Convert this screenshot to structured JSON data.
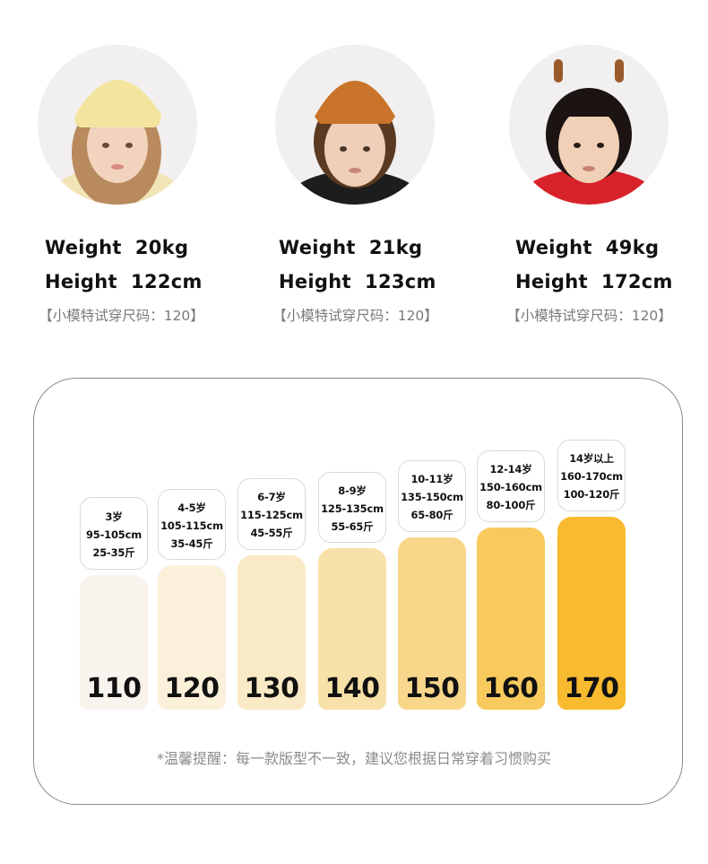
{
  "models": [
    {
      "weight": "Weight  20kg",
      "height": "Height  122cm",
      "trial_size": "【小模特试穿尺码：120】",
      "hat_color": "#f3e5a0",
      "hair_color": "#b98a5e",
      "jacket_color": "#f1e4b6",
      "bg_color": "#f1efef"
    },
    {
      "weight": "Weight  21kg",
      "height": "Height  123cm",
      "trial_size": "【小模特试穿尺码：120】",
      "hat_color": "#c9742a",
      "hair_color": "#5b3a22",
      "jacket_color": "#1d1d1d",
      "bg_color": "#f1efef"
    },
    {
      "weight": "Weight  49kg",
      "height": "Height  172cm",
      "trial_size": "【小模特试穿尺码：120】",
      "hat_color": "#9a5a2c",
      "hair_color": "#1c1412",
      "jacket_color": "#d8222a",
      "bg_color": "#f1efef"
    }
  ],
  "size_chart": [
    {
      "size": "110",
      "age": "3岁",
      "height_range": "95-105cm",
      "weight_range": "25-35斤",
      "color": "#f8f3ec"
    },
    {
      "size": "120",
      "age": "4-5岁",
      "height_range": "105-115cm",
      "weight_range": "35-45斤",
      "color": "#fbf0da"
    },
    {
      "size": "130",
      "age": "6-7岁",
      "height_range": "115-125cm",
      "weight_range": "45-55斤",
      "color": "#fae9c5"
    },
    {
      "size": "140",
      "age": "8-9岁",
      "height_range": "125-135cm",
      "weight_range": "55-65斤",
      "color": "#f8e0a9"
    },
    {
      "size": "150",
      "age": "10-11岁",
      "height_range": "135-150cm",
      "weight_range": "65-80斤",
      "color": "#f8d68a"
    },
    {
      "size": "160",
      "age": "12-14岁",
      "height_range": "150-160cm",
      "weight_range": "80-100斤",
      "color": "#f8ca5d"
    },
    {
      "size": "170",
      "age": "14岁以上",
      "height_range": "160-170cm",
      "weight_range": "100-120斤",
      "color": "#f8ba2e"
    }
  ],
  "tip": "*温馨提醒：每一款版型不一致，建议您根据日常穿着习惯购买"
}
